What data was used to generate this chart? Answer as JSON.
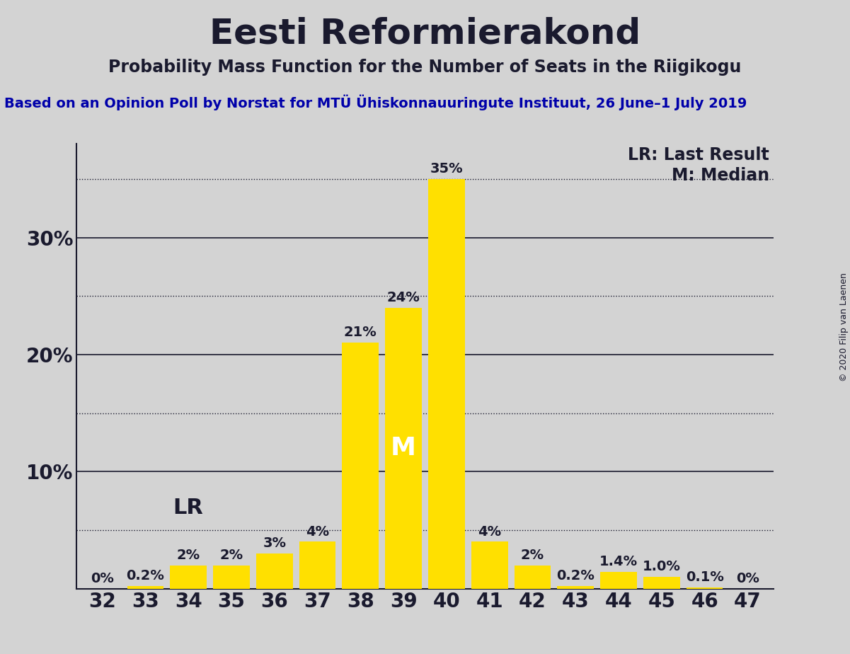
{
  "title": "Eesti Reformierakond",
  "subtitle": "Probability Mass Function for the Number of Seats in the Riigikogu",
  "source_line": "Based on an Opinion Poll by Norstat for MTÜ Ühiskonnauuringute Instituut, 26 June–1 July 2019",
  "copyright": "© 2020 Filip van Laenen",
  "categories": [
    32,
    33,
    34,
    35,
    36,
    37,
    38,
    39,
    40,
    41,
    42,
    43,
    44,
    45,
    46,
    47
  ],
  "values": [
    0.0,
    0.2,
    2.0,
    2.0,
    3.0,
    4.0,
    21.0,
    24.0,
    35.0,
    4.0,
    2.0,
    0.2,
    1.4,
    1.0,
    0.1,
    0.0
  ],
  "labels": [
    "0%",
    "0.2%",
    "2%",
    "2%",
    "3%",
    "4%",
    "21%",
    "24%",
    "35%",
    "4%",
    "2%",
    "0.2%",
    "1.4%",
    "1.0%",
    "0.1%",
    "0%"
  ],
  "bar_color": "#FFE000",
  "background_color": "#D3D3D3",
  "text_color": "#1A1A2E",
  "source_color": "#0000AA",
  "lr_seat": 34,
  "median_seat": 39,
  "ylim": [
    0,
    38
  ],
  "dotted_lines": [
    5.0,
    15.0,
    25.0,
    35.0
  ],
  "solid_lines": [
    10.0,
    20.0,
    30.0
  ],
  "title_fontsize": 36,
  "subtitle_fontsize": 17,
  "source_fontsize": 14,
  "axis_fontsize": 20,
  "bar_label_fontsize": 14,
  "legend_fontsize": 17,
  "lr_label_fontsize": 22,
  "m_label_fontsize": 26,
  "copyright_fontsize": 9
}
